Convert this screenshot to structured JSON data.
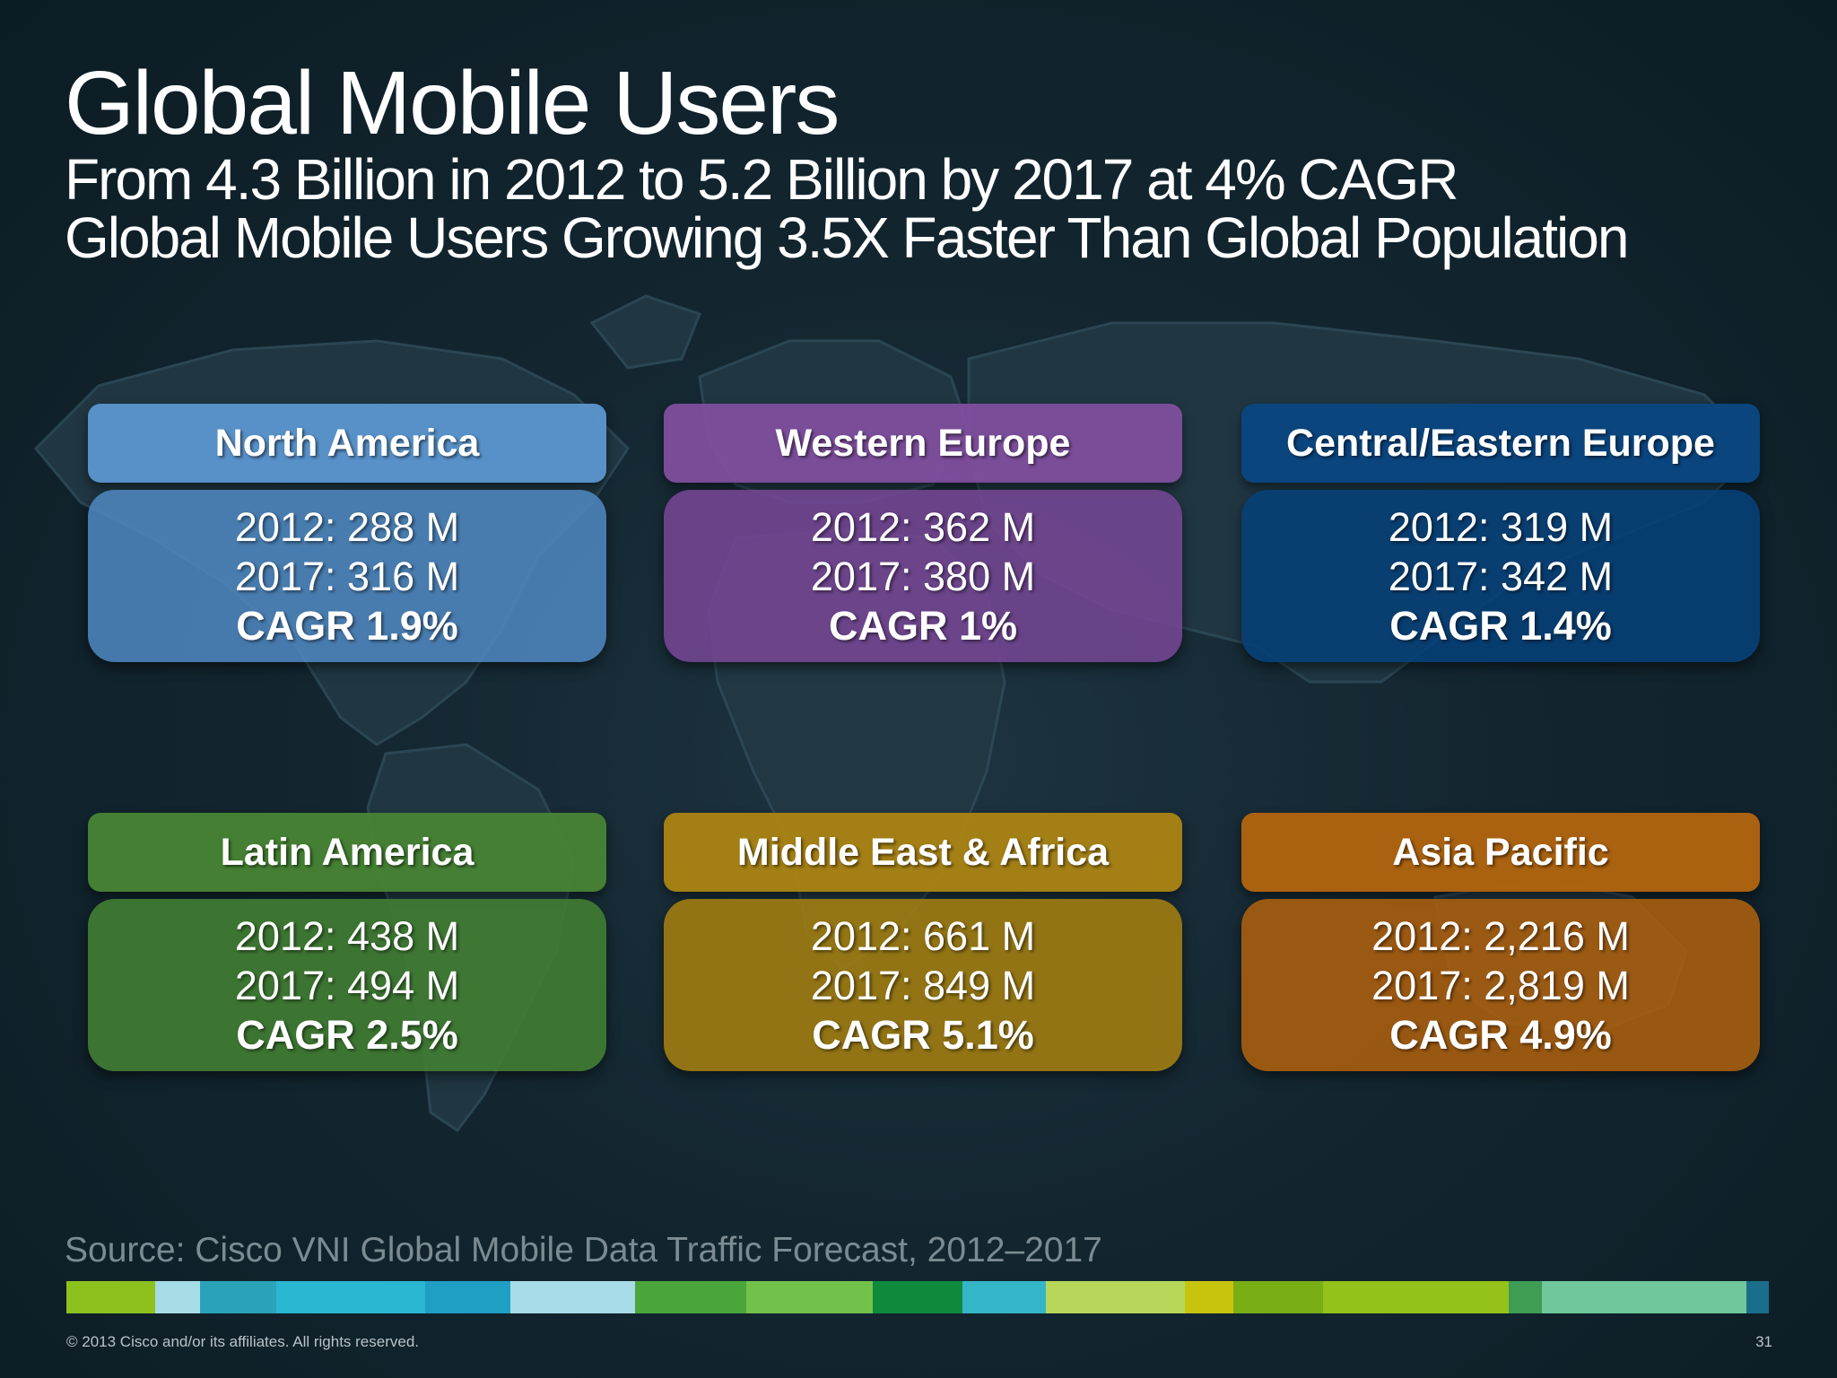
{
  "slide": {
    "title": "Global Mobile Users",
    "subtitle_line1": "From 4.3 Billion in 2012 to 5.2 Billion by 2017 at 4% CAGR",
    "subtitle_line2": "Global Mobile Users Growing 3.5X Faster Than Global Population"
  },
  "regions": [
    {
      "name": "North America",
      "y2012": "2012: 288 M",
      "y2017": "2017: 316 M",
      "cagr": "CAGR 1.9%",
      "header_color": "#5c96d0",
      "body_color": "#5088c2"
    },
    {
      "name": "Western Europe",
      "y2012": "2012: 362 M",
      "y2017": "2017: 380 M",
      "cagr": "CAGR 1%",
      "header_color": "#804e9e",
      "body_color": "#784696"
    },
    {
      "name": "Central/Eastern Europe",
      "y2012": "2012: 319 M",
      "y2017": "2017: 342 M",
      "cagr": "CAGR 1.4%",
      "header_color": "#0a4680",
      "body_color": "#064078"
    },
    {
      "name": "Latin America",
      "y2012": "2012: 438 M",
      "y2017": "2017: 494 M",
      "cagr": "CAGR 2.5%",
      "header_color": "#468234",
      "body_color": "#428032"
    },
    {
      "name": "Middle East & Africa",
      "y2012": "2012: 661 M",
      "y2017": "2017: 849 M",
      "cagr": "CAGR 5.1%",
      "header_color": "#a88214",
      "body_color": "#a07c12"
    },
    {
      "name": "Asia Pacific",
      "y2012": "2012: 2,216 M",
      "y2017": "2017: 2,819 M",
      "cagr": "CAGR 4.9%",
      "header_color": "#b06410",
      "body_color": "#a85e10"
    }
  ],
  "source": "Source: Cisco VNI Global Mobile Data Traffic Forecast, 2012–2017",
  "footer": {
    "copyright": "© 2013 Cisco and/or its affiliates. All rights reserved.",
    "page_number": "31"
  },
  "color_bar": [
    "#8dc11e",
    "#a6dce6",
    "#2aa3b8",
    "#29b7d2",
    "#1f9fc4",
    "#a8dce8",
    "#4aa63a",
    "#72c14b",
    "#0f8a3c",
    "#35b5c8",
    "#b7d75a",
    "#c7c40e",
    "#7aae15",
    "#94c11a",
    "#3f9c55",
    "#6fc79b",
    "#1a6e8c"
  ]
}
